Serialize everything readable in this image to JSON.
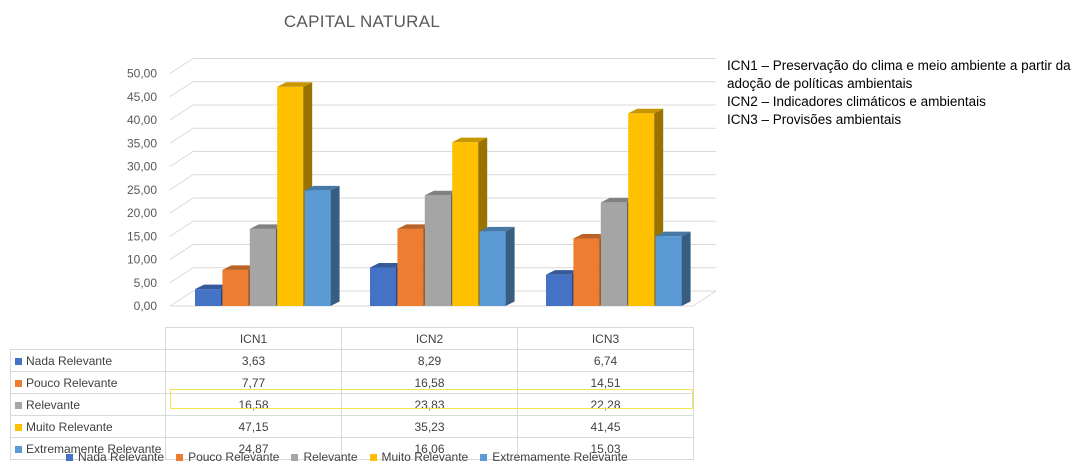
{
  "chart_data": {
    "type": "bar",
    "title": "CAPITAL NATURAL",
    "categories": [
      "ICN1",
      "ICN2",
      "ICN3"
    ],
    "series": [
      {
        "name": "Nada Relevante",
        "color": "#4472c4",
        "labels": [
          "3,63",
          "8,29",
          "6,74"
        ],
        "values": [
          3.63,
          8.29,
          6.74
        ]
      },
      {
        "name": "Pouco Relevante",
        "color": "#ed7d31",
        "labels": [
          "7,77",
          "16,58",
          "14,51"
        ],
        "values": [
          7.77,
          16.58,
          14.51
        ]
      },
      {
        "name": "Relevante",
        "color": "#a5a5a5",
        "labels": [
          "16,58",
          "23,83",
          "22,28"
        ],
        "values": [
          16.58,
          23.83,
          22.28
        ]
      },
      {
        "name": "Muito Relevante",
        "color": "#ffc000",
        "labels": [
          "47,15",
          "35,23",
          "41,45"
        ],
        "values": [
          47.15,
          35.23,
          41.45
        ]
      },
      {
        "name": "Extremamente Relevante",
        "color": "#5b9bd5",
        "labels": [
          "24,87",
          "16,06",
          "15,03"
        ],
        "values": [
          24.87,
          16.06,
          15.03
        ]
      }
    ],
    "y_ticks": [
      "0,00",
      "5,00",
      "10,00",
      "15,00",
      "20,00",
      "25,00",
      "30,00",
      "35,00",
      "40,00",
      "45,00",
      "50,00"
    ],
    "ylim": [
      0,
      50
    ],
    "grid": true,
    "legend_position": "bottom",
    "data_table": true
  },
  "notes": [
    "ICN1 – Preservação do clima e meio ambiente a partir da",
    "adoção de políticas ambientais",
    "ICN2 – Indicadores climáticos e ambientais",
    "ICN3 – Provisões ambientais"
  ]
}
